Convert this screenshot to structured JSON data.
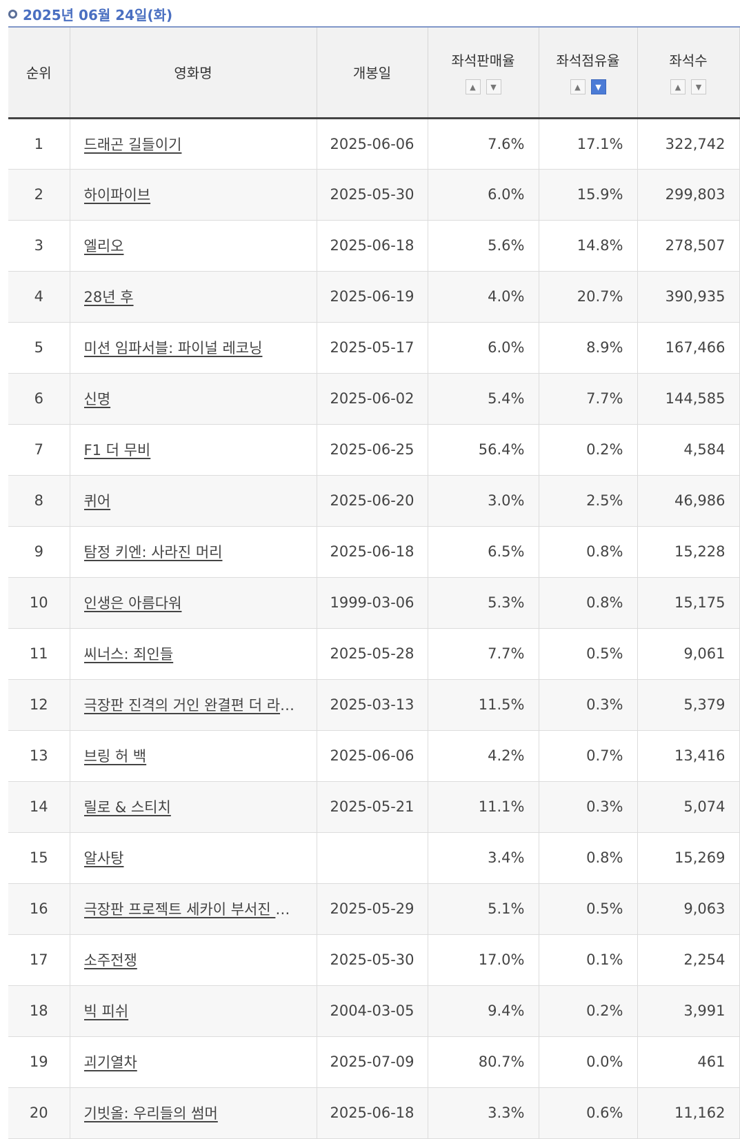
{
  "header": {
    "date": "2025년 06월 24일(화)"
  },
  "columns": {
    "rank": "순위",
    "title": "영화명",
    "open_date": "개봉일",
    "sales_rate": "좌석판매율",
    "share_rate": "좌석점유율",
    "seats": "좌석수"
  },
  "sort_icons": {
    "up": "chevron-up-icon",
    "down": "chevron-down-icon",
    "active_color": "#4b7bd6"
  },
  "rows": [
    {
      "rank": "1",
      "title": "드래곤 길들이기",
      "open": "2025-06-06",
      "sales": "7.6%",
      "share": "17.1%",
      "seats": "322,742"
    },
    {
      "rank": "2",
      "title": "하이파이브",
      "open": "2025-05-30",
      "sales": "6.0%",
      "share": "15.9%",
      "seats": "299,803"
    },
    {
      "rank": "3",
      "title": "엘리오",
      "open": "2025-06-18",
      "sales": "5.6%",
      "share": "14.8%",
      "seats": "278,507"
    },
    {
      "rank": "4",
      "title": "28년 후",
      "open": "2025-06-19",
      "sales": "4.0%",
      "share": "20.7%",
      "seats": "390,935"
    },
    {
      "rank": "5",
      "title": "미션 임파서블: 파이널 레코닝",
      "open": "2025-05-17",
      "sales": "6.0%",
      "share": "8.9%",
      "seats": "167,466"
    },
    {
      "rank": "6",
      "title": "신명",
      "open": "2025-06-02",
      "sales": "5.4%",
      "share": "7.7%",
      "seats": "144,585"
    },
    {
      "rank": "7",
      "title": "F1 더 무비",
      "open": "2025-06-25",
      "sales": "56.4%",
      "share": "0.2%",
      "seats": "4,584"
    },
    {
      "rank": "8",
      "title": "퀴어",
      "open": "2025-06-20",
      "sales": "3.0%",
      "share": "2.5%",
      "seats": "46,986"
    },
    {
      "rank": "9",
      "title": "탐정 키엔: 사라진 머리",
      "open": "2025-06-18",
      "sales": "6.5%",
      "share": "0.8%",
      "seats": "15,228"
    },
    {
      "rank": "10",
      "title": "인생은 아름다워",
      "open": "1999-03-06",
      "sales": "5.3%",
      "share": "0.8%",
      "seats": "15,175"
    },
    {
      "rank": "11",
      "title": "씨너스: 죄인들",
      "open": "2025-05-28",
      "sales": "7.7%",
      "share": "0.5%",
      "seats": "9,061"
    },
    {
      "rank": "12",
      "title": "극장판 진격의 거인 완결편 더 라스…",
      "open": "2025-03-13",
      "sales": "11.5%",
      "share": "0.3%",
      "seats": "5,379"
    },
    {
      "rank": "13",
      "title": "브링 허 백",
      "open": "2025-06-06",
      "sales": "4.2%",
      "share": "0.7%",
      "seats": "13,416"
    },
    {
      "rank": "14",
      "title": "릴로 & 스티치",
      "open": "2025-05-21",
      "sales": "11.1%",
      "share": "0.3%",
      "seats": "5,074"
    },
    {
      "rank": "15",
      "title": "알사탕",
      "open": "",
      "sales": "3.4%",
      "share": "0.8%",
      "seats": "15,269"
    },
    {
      "rank": "16",
      "title": "극장판 프로젝트 세카이 부서진 세…",
      "open": "2025-05-29",
      "sales": "5.1%",
      "share": "0.5%",
      "seats": "9,063"
    },
    {
      "rank": "17",
      "title": "소주전쟁",
      "open": "2025-05-30",
      "sales": "17.0%",
      "share": "0.1%",
      "seats": "2,254"
    },
    {
      "rank": "18",
      "title": "빅 피쉬",
      "open": "2004-03-05",
      "sales": "9.4%",
      "share": "0.2%",
      "seats": "3,991"
    },
    {
      "rank": "19",
      "title": "괴기열차",
      "open": "2025-07-09",
      "sales": "80.7%",
      "share": "0.0%",
      "seats": "461"
    },
    {
      "rank": "20",
      "title": "기빗올: 우리들의 썸머",
      "open": "2025-06-18",
      "sales": "3.3%",
      "share": "0.6%",
      "seats": "11,162"
    }
  ]
}
